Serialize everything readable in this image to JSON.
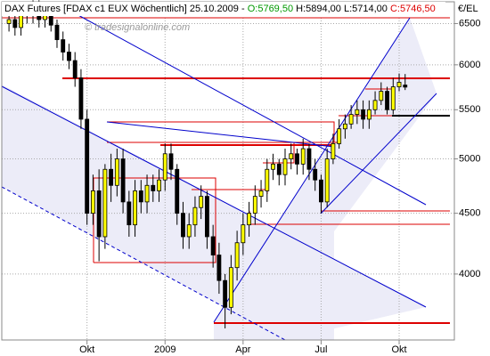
{
  "chart_data": {
    "type": "candlestick",
    "title": {
      "name": "DAX Futures [FDAX c1 EUX  Wöchentlich]",
      "date": "25.10.2009",
      "separator": "-",
      "open": "O:5769,50",
      "high_low": "H:5894,00 L:5714,00",
      "close": "C:5746,50"
    },
    "watermark": "© tradesignalonline.com",
    "unit_label": "€/EL",
    "x": [
      0,
      1,
      2,
      3,
      4,
      5,
      6,
      7,
      8,
      9,
      10,
      11,
      12,
      13,
      14,
      15,
      16,
      17,
      18,
      19,
      20,
      21,
      22,
      23,
      24,
      25,
      26,
      27,
      28,
      29,
      30,
      31,
      32,
      33,
      34,
      35,
      36,
      37,
      38,
      39,
      40,
      41,
      42,
      43,
      44,
      45,
      46,
      47,
      48,
      49,
      50,
      51,
      52,
      53,
      54,
      55,
      56,
      57,
      58,
      59,
      60,
      61,
      62,
      63,
      64,
      65,
      66
    ],
    "open": [
      6500,
      6550,
      6450,
      6650,
      6600,
      6700,
      6550,
      6620,
      6480,
      6300,
      6150,
      6050,
      5850,
      5400,
      4500,
      4700,
      4300,
      4900,
      4750,
      5000,
      4600,
      4400,
      4700,
      4600,
      4750,
      4700,
      4800,
      5050,
      4900,
      4500,
      4300,
      4400,
      4550,
      4650,
      4300,
      4150,
      3950,
      3750,
      4050,
      4250,
      4400,
      4500,
      4650,
      4700,
      4900,
      4950,
      4850,
      5000,
      5050,
      4950,
      5100,
      4900,
      4800,
      4600,
      5000,
      5150,
      5300,
      5350,
      5450,
      5500,
      5400,
      5500,
      5600,
      5700,
      5500,
      5750,
      5769.5
    ],
    "high": [
      6650,
      6650,
      6750,
      6750,
      6800,
      6800,
      6700,
      6700,
      6550,
      6400,
      6250,
      6150,
      5950,
      5500,
      4850,
      4900,
      4950,
      5050,
      5100,
      5100,
      4700,
      4800,
      4800,
      4850,
      4850,
      4900,
      5150,
      5150,
      4950,
      4600,
      4500,
      4650,
      4750,
      4700,
      4400,
      4250,
      4000,
      4150,
      4350,
      4500,
      4600,
      4750,
      4800,
      5000,
      5050,
      5000,
      5100,
      5150,
      5100,
      5200,
      5150,
      5000,
      4850,
      5100,
      5250,
      5400,
      5450,
      5550,
      5600,
      5600,
      5600,
      5700,
      5800,
      5750,
      5850,
      5900,
      5894
    ],
    "low": [
      6400,
      6350,
      6350,
      6500,
      6500,
      6450,
      6450,
      6400,
      6200,
      6050,
      5950,
      5750,
      5300,
      4400,
      4400,
      4100,
      4200,
      4600,
      4650,
      4500,
      4300,
      4300,
      4500,
      4500,
      4600,
      4600,
      4700,
      4800,
      4400,
      4200,
      4200,
      4300,
      4450,
      4200,
      4050,
      3850,
      3600,
      3700,
      3950,
      4150,
      4300,
      4400,
      4550,
      4600,
      4800,
      4750,
      4750,
      4900,
      4850,
      4850,
      4800,
      4700,
      4500,
      4550,
      4950,
      5100,
      5200,
      5300,
      5350,
      5300,
      5300,
      5450,
      5550,
      5450,
      5450,
      5700,
      5714
    ],
    "close": [
      6550,
      6450,
      6650,
      6600,
      6700,
      6550,
      6620,
      6480,
      6300,
      6150,
      6050,
      5850,
      5400,
      4500,
      4700,
      4300,
      4900,
      4750,
      5000,
      4600,
      4400,
      4700,
      4600,
      4750,
      4700,
      4800,
      5050,
      4900,
      4500,
      4300,
      4400,
      4550,
      4650,
      4300,
      4150,
      3950,
      3750,
      4050,
      4250,
      4400,
      4500,
      4650,
      4700,
      4900,
      4950,
      4850,
      5000,
      5050,
      4950,
      5100,
      4900,
      4800,
      4600,
      5000,
      5150,
      5300,
      5350,
      5450,
      5500,
      5400,
      5500,
      5600,
      5700,
      5500,
      5750,
      5800,
      5746.5
    ],
    "up_color": "#ffff00",
    "down_color": "#000000",
    "xlim": [
      -1.2,
      74.2
    ],
    "xticks": [
      {
        "value": 13,
        "label": "Okt"
      },
      {
        "value": 26,
        "label": "2009"
      },
      {
        "value": 39,
        "label": "Apr"
      },
      {
        "value": 52,
        "label": "Jul"
      },
      {
        "value": 65,
        "label": "Okt"
      }
    ],
    "ylim": [
      3520,
      6780
    ],
    "log_scale": true,
    "yticks": [
      4000,
      4500,
      5000,
      5500,
      6000,
      6500
    ],
    "grid": true
  }
}
